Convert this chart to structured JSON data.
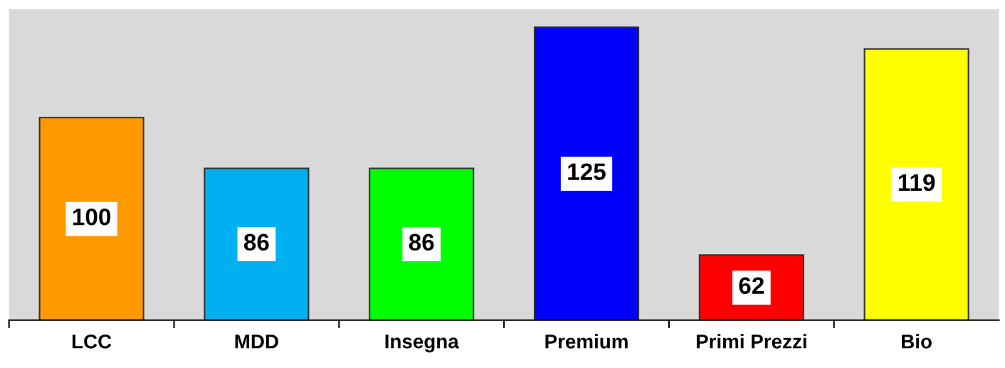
{
  "chart_data": {
    "type": "bar",
    "categories": [
      "LCC",
      "MDD",
      "Insegna",
      "Premium",
      "Primi Prezzi",
      "Bio"
    ],
    "values": [
      100,
      86,
      86,
      125,
      62,
      119
    ],
    "colors": [
      "#ff9900",
      "#00b0f0",
      "#00ff00",
      "#0000ff",
      "#ff0000",
      "#ffff00"
    ],
    "ylim": [
      44,
      130
    ],
    "tick_labels": "x",
    "data_labels": true,
    "grid": false,
    "legend": false
  }
}
